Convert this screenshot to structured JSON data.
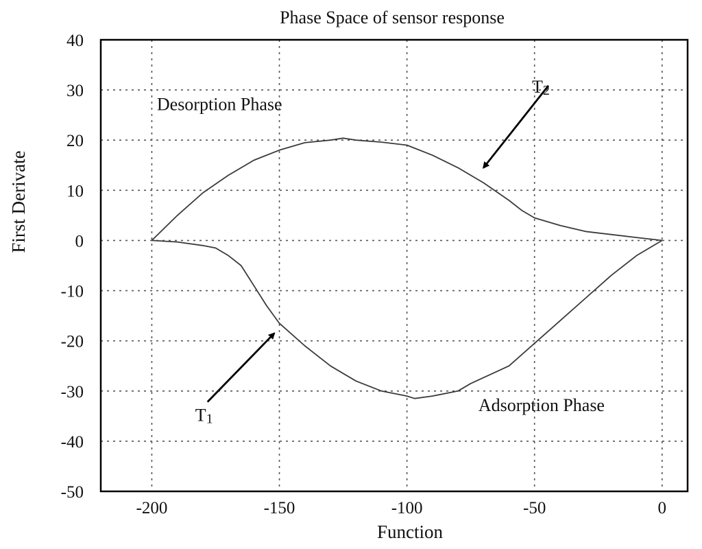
{
  "chart_data": {
    "type": "line",
    "title": "Phase Space of sensor response",
    "xlabel": "Function",
    "ylabel": "First Derivate",
    "xlim": [
      -220,
      10
    ],
    "ylim": [
      -50,
      40
    ],
    "x_ticks": [
      -200,
      -150,
      -100,
      -50,
      0
    ],
    "y_ticks": [
      40,
      30,
      20,
      10,
      0,
      -10,
      -20,
      -30,
      -40,
      -50
    ],
    "x_tick_labels": [
      "-200",
      "-150",
      "-100",
      "-50",
      "0"
    ],
    "y_tick_labels": [
      "40",
      "30",
      "20",
      "10",
      "0",
      "-10",
      "-20",
      "-30",
      "-40",
      "-50"
    ],
    "grid": true,
    "series": [
      {
        "points": [
          [
            -200,
            0
          ],
          [
            -190,
            5
          ],
          [
            -180,
            9.5
          ],
          [
            -170,
            13
          ],
          [
            -160,
            16
          ],
          [
            -150,
            18
          ],
          [
            -140,
            19.5
          ],
          [
            -130,
            20
          ],
          [
            -125,
            20.4
          ],
          [
            -120,
            20
          ],
          [
            -110,
            19.6
          ],
          [
            -100,
            19
          ],
          [
            -90,
            17
          ],
          [
            -80,
            14.5
          ],
          [
            -70,
            11.5
          ],
          [
            -60,
            8
          ],
          [
            -55,
            6
          ],
          [
            -50,
            4.5
          ],
          [
            -40,
            3
          ],
          [
            -30,
            1.8
          ],
          [
            -20,
            1.2
          ],
          [
            -10,
            0.6
          ],
          [
            0,
            0
          ]
        ]
      },
      {
        "points": [
          [
            -200,
            0
          ],
          [
            -190,
            -0.3
          ],
          [
            -180,
            -1
          ],
          [
            -175,
            -1.5
          ],
          [
            -170,
            -3
          ],
          [
            -165,
            -5
          ],
          [
            -160,
            -9
          ],
          [
            -155,
            -13
          ],
          [
            -150,
            -16.5
          ],
          [
            -140,
            -21
          ],
          [
            -130,
            -25
          ],
          [
            -120,
            -28
          ],
          [
            -110,
            -30
          ],
          [
            -100,
            -31
          ],
          [
            -97,
            -31.5
          ],
          [
            -90,
            -31
          ],
          [
            -80,
            -30
          ],
          [
            -75,
            -28.5
          ],
          [
            -60,
            -25
          ],
          [
            -50,
            -20.5
          ],
          [
            -40,
            -16
          ],
          [
            -30,
            -11.5
          ],
          [
            -20,
            -7
          ],
          [
            -10,
            -3
          ],
          [
            0,
            0
          ]
        ]
      }
    ],
    "annotations": [
      {
        "text": "Desorption Phase",
        "x": -198,
        "y": 26
      },
      {
        "text": "Adsorption Phase",
        "x": -72,
        "y": -34
      },
      {
        "text": "T",
        "subscript": "2",
        "x": -51,
        "y": 29.5,
        "arrow_to": [
          -70,
          14.5
        ]
      },
      {
        "text": "T",
        "subscript": "1",
        "x": -183,
        "y": -36,
        "arrow_to": [
          -152,
          -18.5
        ]
      }
    ]
  }
}
